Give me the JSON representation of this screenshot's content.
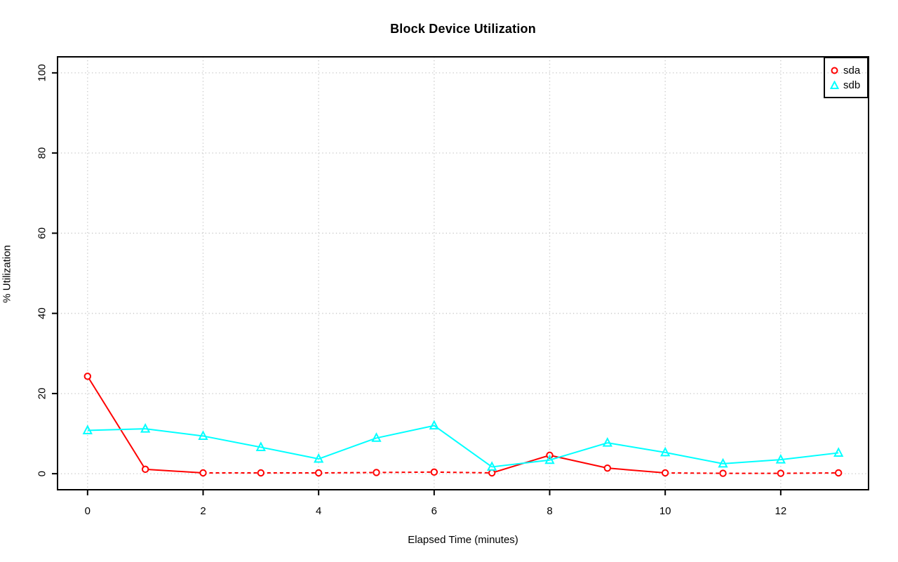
{
  "chart_data": {
    "type": "line",
    "title": "Block Device Utilization",
    "xlabel": "Elapsed Time (minutes)",
    "ylabel": "% Utilization",
    "x": [
      0,
      1,
      2,
      3,
      4,
      5,
      6,
      7,
      8,
      9,
      10,
      11,
      12,
      13
    ],
    "series": [
      {
        "name": "sda",
        "color": "#ff0000",
        "marker": "circle",
        "values": [
          24.3,
          1.1,
          0.2,
          0.2,
          0.2,
          0.3,
          0.4,
          0.2,
          4.6,
          1.4,
          0.2,
          0.1,
          0.1,
          0.2
        ]
      },
      {
        "name": "sdb",
        "color": "#00ffff",
        "marker": "triangle",
        "values": [
          10.8,
          11.2,
          9.4,
          6.6,
          3.7,
          8.9,
          12.0,
          1.7,
          3.4,
          7.7,
          5.3,
          2.5,
          3.5,
          5.2
        ]
      }
    ],
    "x_ticks": [
      0,
      2,
      4,
      6,
      8,
      10,
      12
    ],
    "y_ticks": [
      0,
      20,
      40,
      60,
      80,
      100
    ],
    "xlim": [
      -0.52,
      13.52
    ],
    "ylim": [
      -4,
      104
    ],
    "grid": true,
    "grid_style": "dotted",
    "grid_color": "#cbcbcb",
    "axis_color": "#000000",
    "legend_position": "top-right"
  }
}
